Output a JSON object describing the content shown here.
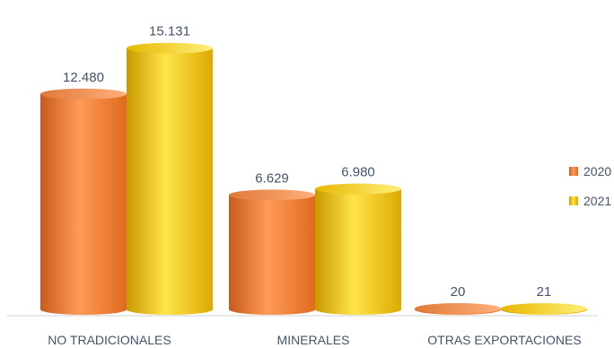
{
  "chart_data": {
    "type": "bar",
    "categories": [
      "NO TRADICIONALES",
      "MINERALES",
      "OTRAS EXPORTACIONES"
    ],
    "series": [
      {
        "name": "2020",
        "values": [
          12480,
          6629,
          20
        ],
        "labels": [
          "12.480",
          "6.629",
          "20"
        ]
      },
      {
        "name": "2021",
        "values": [
          15131,
          6980,
          21
        ],
        "labels": [
          "15.131",
          "6.980",
          "21"
        ]
      }
    ],
    "ylim": [
      0,
      16000
    ],
    "grid": false,
    "legend_position": "right",
    "colors": {
      "2020": "#f07c2a",
      "2021": "#f2c200"
    }
  }
}
